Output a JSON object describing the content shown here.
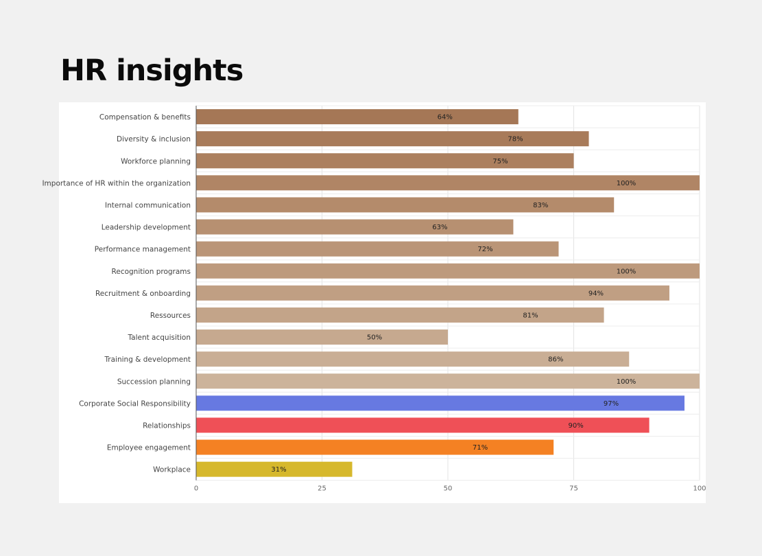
{
  "page": {
    "title": "HR insights"
  },
  "chart_data": {
    "type": "bar",
    "orientation": "horizontal",
    "title": "",
    "xlabel": "",
    "ylabel": "",
    "xlim": [
      0,
      100
    ],
    "x_ticks": [
      0,
      25,
      50,
      75,
      100
    ],
    "grid": true,
    "legend": "none",
    "value_label_format": "{v}%",
    "categories": [
      "Compensation & benefits",
      "Diversity & inclusion",
      "Workforce planning",
      "Importance of HR within the organization",
      "Internal communication",
      "Leadership development",
      "Performance management",
      "Recognition programs",
      "Recruitment & onboarding",
      "Ressources",
      "Talent acquisition",
      "Training & development",
      "Succession planning",
      "Corporate Social Responsibility",
      "Relationships",
      "Employee engagement",
      "Workplace"
    ],
    "values": [
      64,
      78,
      75,
      100,
      83,
      63,
      72,
      100,
      94,
      81,
      50,
      86,
      100,
      97,
      90,
      71,
      31
    ],
    "colors": [
      "#a57756",
      "#a87b5a",
      "#ac805f",
      "#b08565",
      "#b48b6b",
      "#b79071",
      "#ba9577",
      "#bd9a7d",
      "#c09f83",
      "#c3a489",
      "#c6a98f",
      "#c9ae95",
      "#ccb39b",
      "#6779e1",
      "#ef5057",
      "#f48123",
      "#d6b82c"
    ]
  }
}
